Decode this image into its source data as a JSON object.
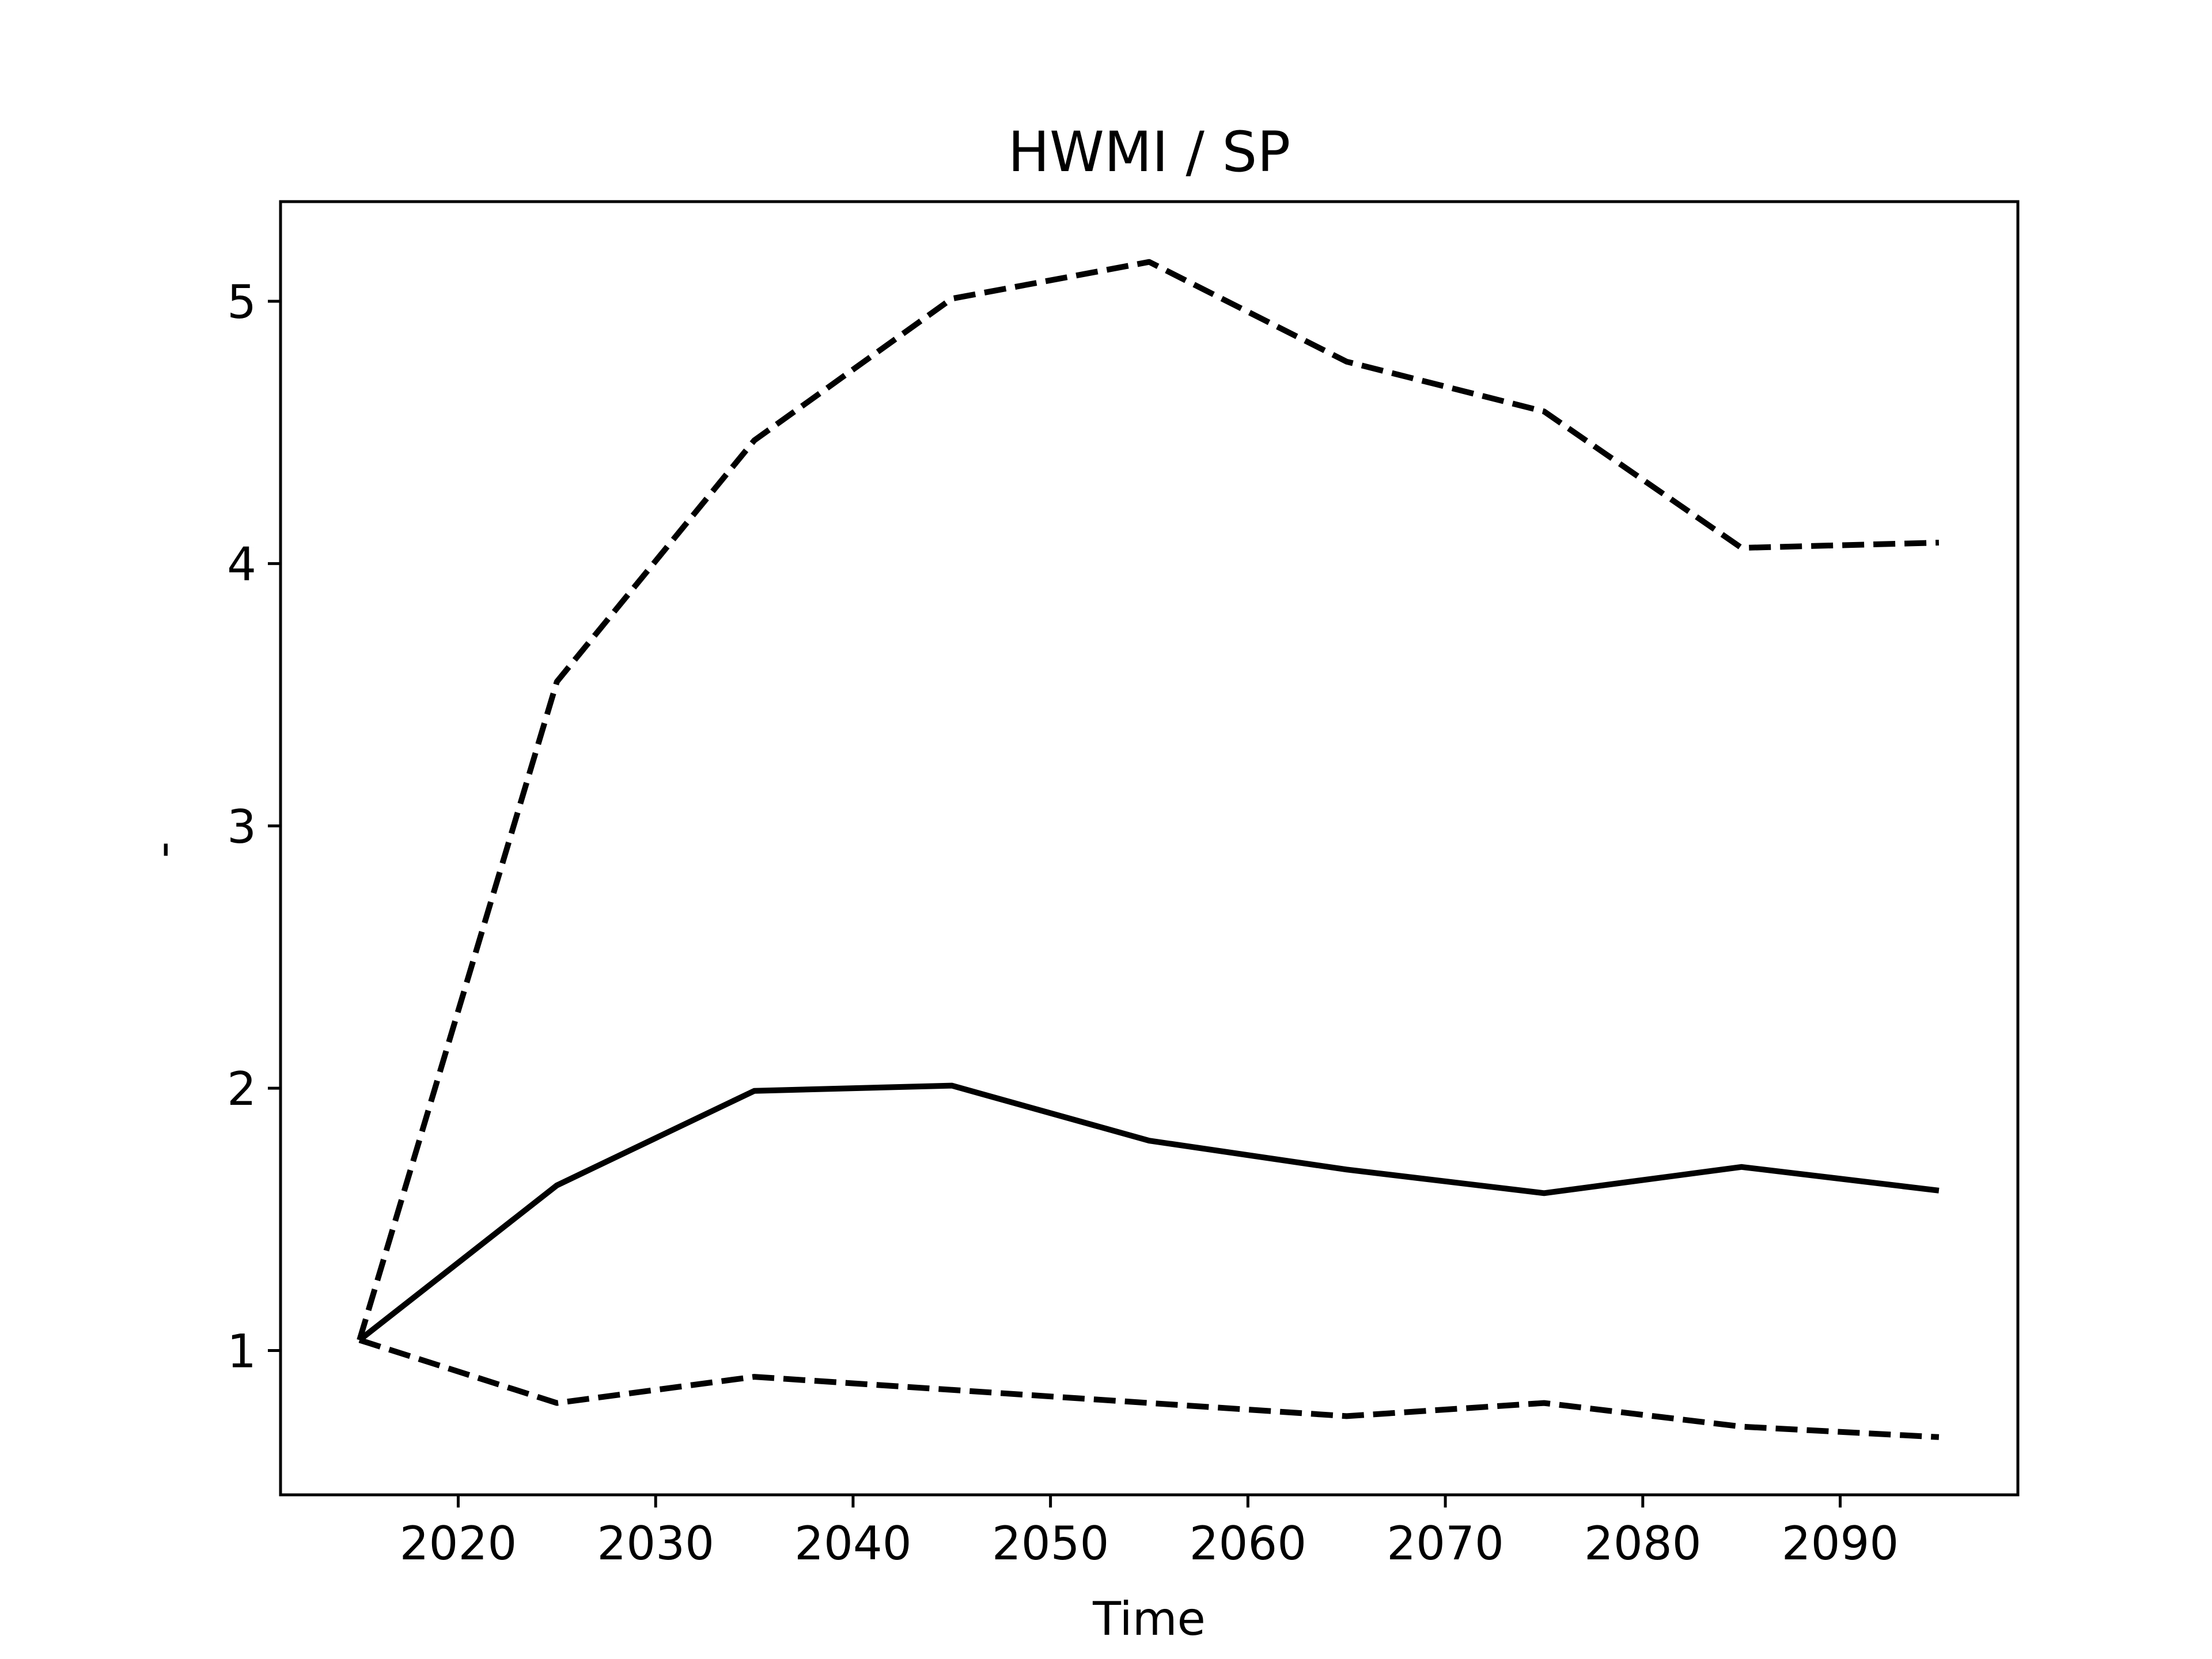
{
  "chart_data": {
    "type": "line",
    "title": "HWMI / SP",
    "xlabel": "Time",
    "ylabel": "-",
    "xlim": [
      2011,
      2099
    ],
    "ylim": [
      0.45,
      5.38
    ],
    "xticks": [
      2020,
      2030,
      2040,
      2050,
      2060,
      2070,
      2080,
      2090
    ],
    "yticks": [
      1,
      2,
      3,
      4,
      5
    ],
    "grid": false,
    "x": [
      2015,
      2025,
      2035,
      2045,
      2055,
      2065,
      2075,
      2085,
      2095
    ],
    "series": [
      {
        "style": "solid",
        "values": [
          1.04,
          1.63,
          1.99,
          2.01,
          1.8,
          1.69,
          1.6,
          1.7,
          1.61
        ]
      },
      {
        "style": "dashed",
        "values": [
          1.04,
          3.55,
          4.47,
          5.01,
          5.15,
          4.77,
          4.58,
          4.06,
          4.08
        ]
      },
      {
        "style": "dashed",
        "values": [
          1.04,
          0.8,
          0.9,
          0.85,
          0.8,
          0.75,
          0.8,
          0.71,
          0.67
        ]
      }
    ],
    "colors": {
      "line": "#000000"
    }
  }
}
